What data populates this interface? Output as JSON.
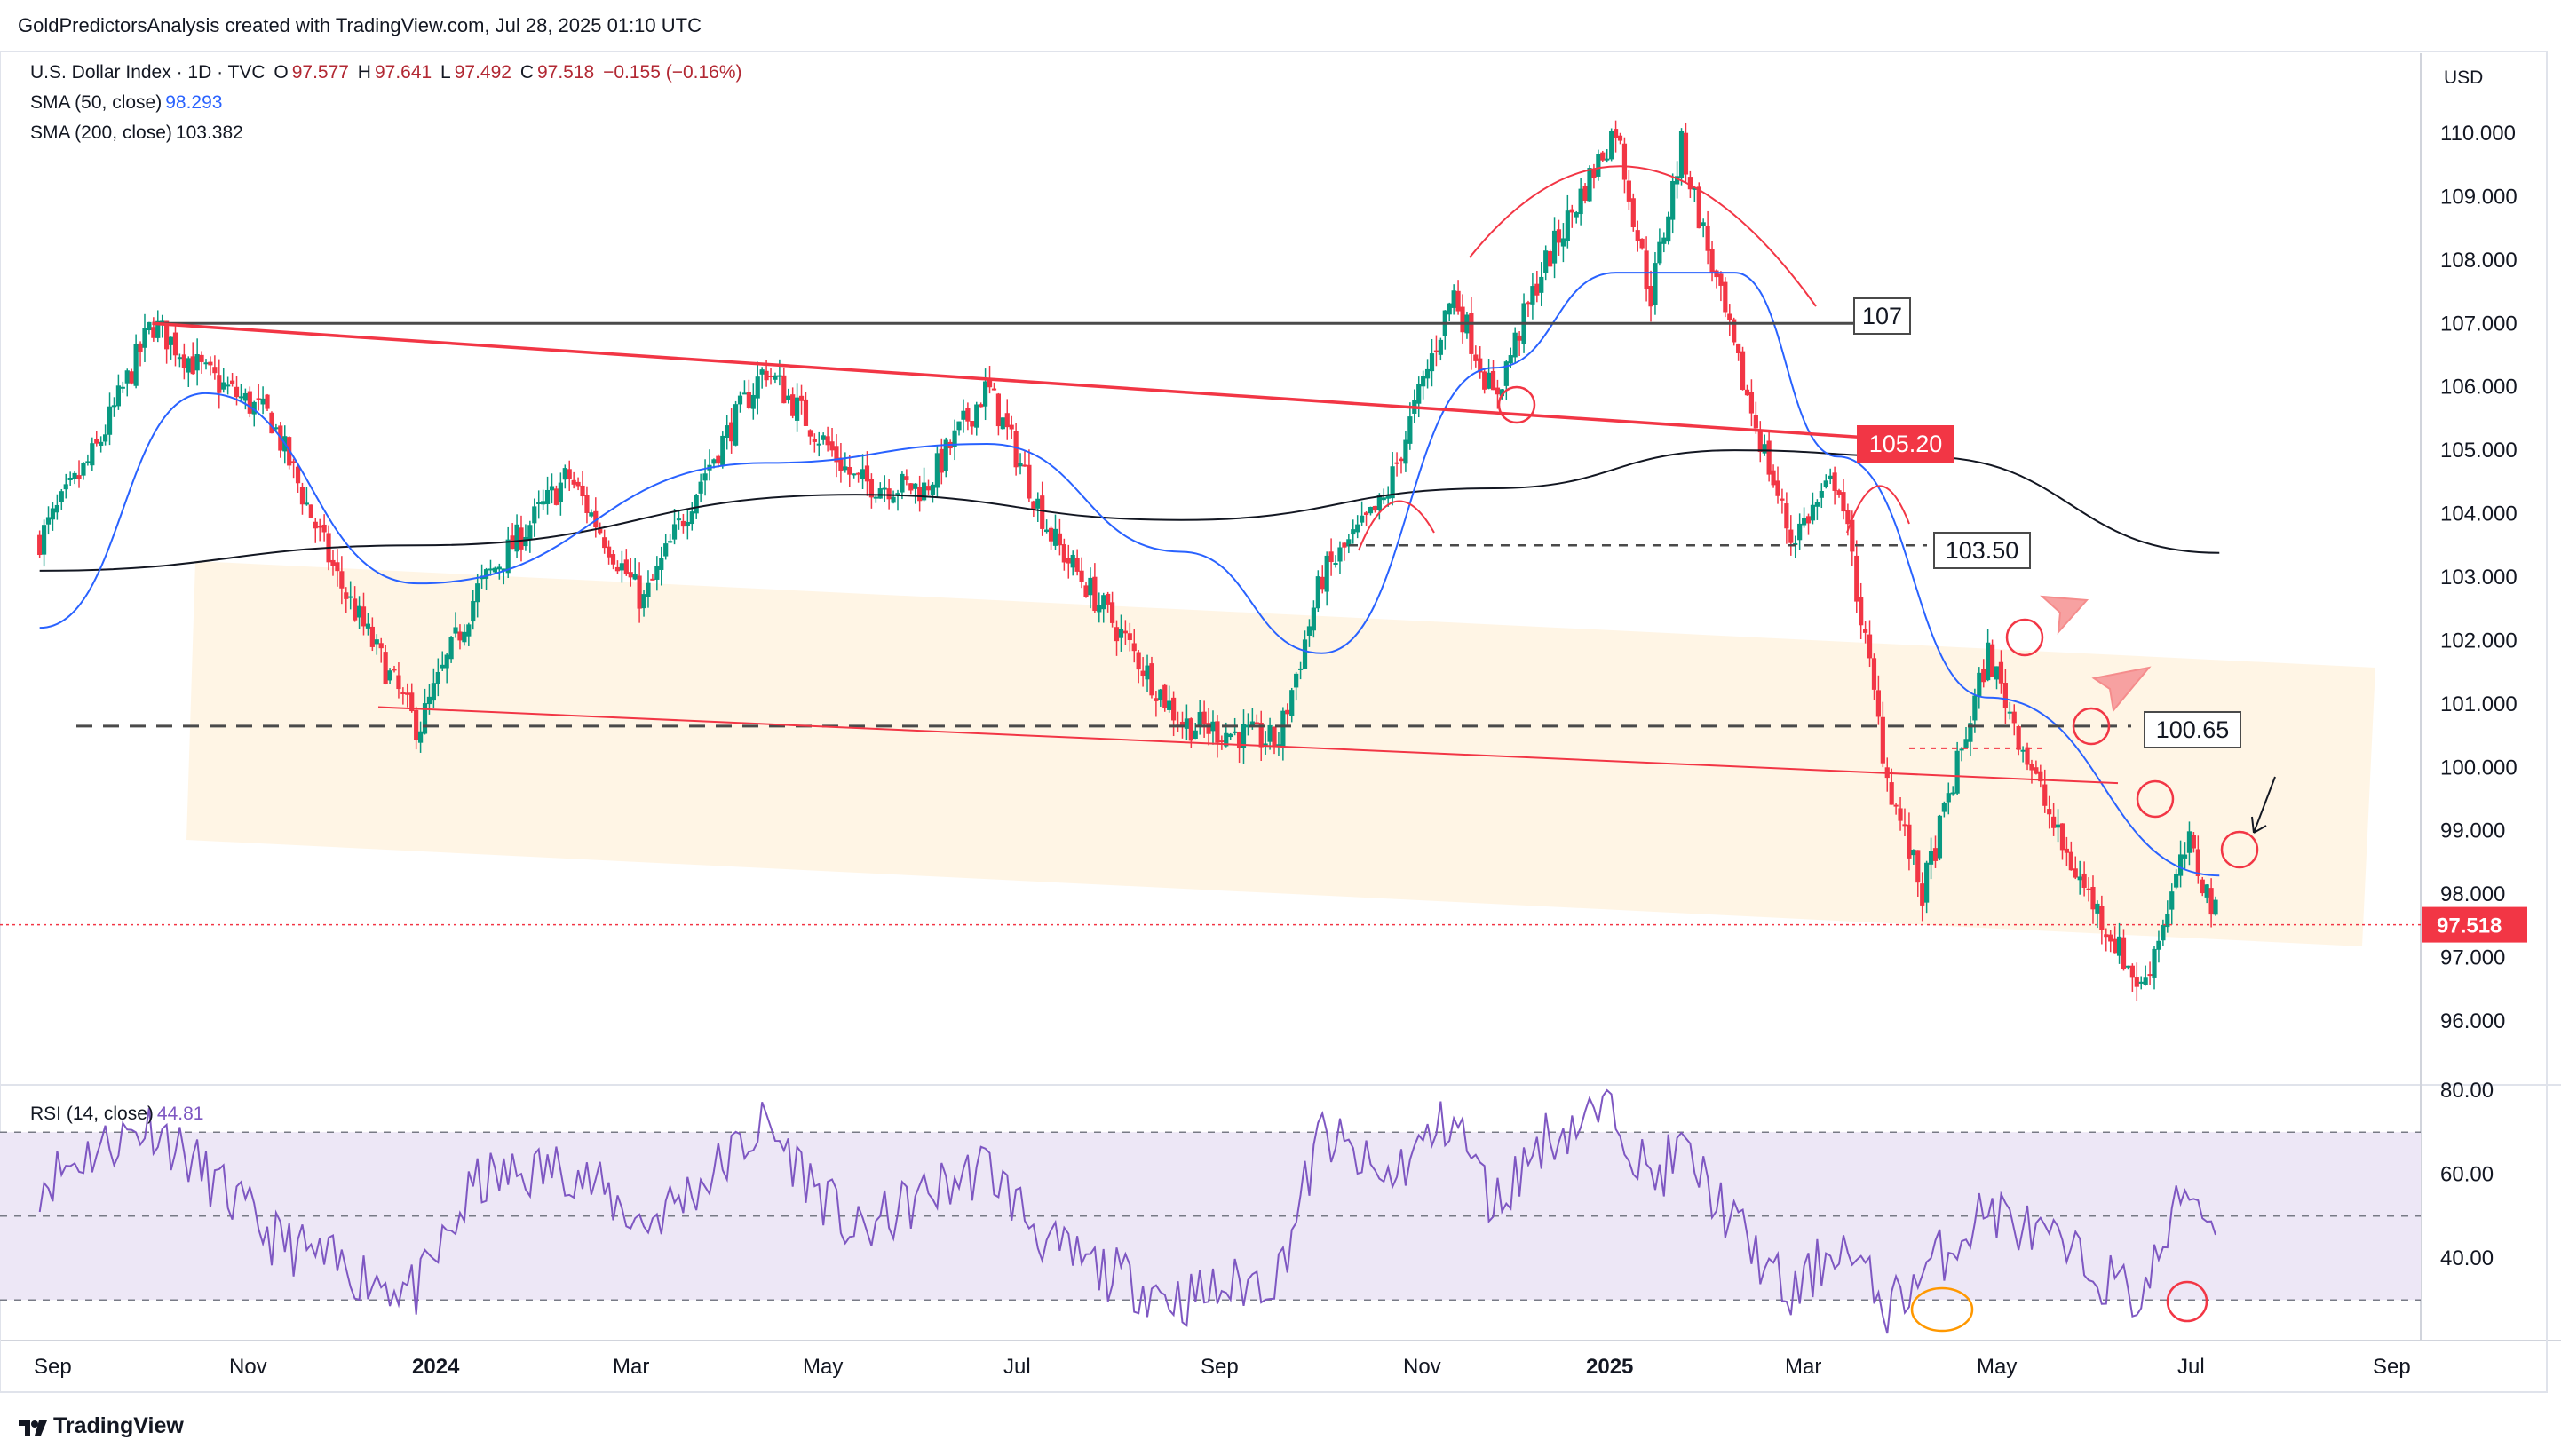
{
  "header": {
    "attribution": "GoldPredictorsAnalysis created with TradingView.com, Jul 28, 2025 01:10 UTC"
  },
  "legend": {
    "symbol": "U.S. Dollar Index · 1D · TVC",
    "o_label": "O",
    "o_value": "97.577",
    "h_label": "H",
    "h_value": "97.641",
    "l_label": "L",
    "l_value": "97.492",
    "c_label": "C",
    "c_value": "97.518",
    "change": "−0.155 (−0.16%)",
    "sma50_label": "SMA (50, close)",
    "sma50_value": "98.293",
    "sma200_label": "SMA (200, close)",
    "sma200_value": "103.382",
    "rsi_label": "RSI (14, close)",
    "rsi_value": "44.81"
  },
  "price_axis": {
    "currency": "USD",
    "ticks": [
      "110.000",
      "109.000",
      "108.000",
      "107.000",
      "106.000",
      "105.000",
      "104.000",
      "103.000",
      "102.000",
      "101.000",
      "100.000",
      "99.000",
      "98.000",
      "97.000",
      "96.000"
    ],
    "last_price": "97.518"
  },
  "rsi_axis": {
    "ticks": [
      "80.00",
      "60.00",
      "40.00"
    ]
  },
  "time_axis": {
    "labels": [
      {
        "text": "Sep",
        "bold": false
      },
      {
        "text": "Nov",
        "bold": false
      },
      {
        "text": "2024",
        "bold": true
      },
      {
        "text": "Mar",
        "bold": false
      },
      {
        "text": "May",
        "bold": false
      },
      {
        "text": "Jul",
        "bold": false
      },
      {
        "text": "Sep",
        "bold": false
      },
      {
        "text": "Nov",
        "bold": false
      },
      {
        "text": "2025",
        "bold": true
      },
      {
        "text": "Mar",
        "bold": false
      },
      {
        "text": "May",
        "bold": false
      },
      {
        "text": "Jul",
        "bold": false
      },
      {
        "text": "Sep",
        "bold": false
      }
    ]
  },
  "annotations": {
    "level_107": "107",
    "level_105_20": "105.20",
    "level_103_50": "103.50",
    "level_100_65": "100.65"
  },
  "footer": {
    "brand": "TradingView"
  },
  "colors": {
    "up": "#089981",
    "down": "#f23645",
    "sma50": "#2962ff",
    "sma200": "#131722",
    "rsi": "#7e57c2",
    "channel": "#fff3e0",
    "rsi_band": "#ede7f6",
    "resistance": "#f23645"
  },
  "chart_data": [
    {
      "type": "candlestick",
      "title": "U.S. Dollar Index · 1D · TVC",
      "ylabel": "USD",
      "ylim": [
        95.2,
        110.9
      ],
      "x_ticks": [
        "Sep",
        "Nov",
        "2024",
        "Mar",
        "May",
        "Jul",
        "Sep",
        "Nov",
        "2025",
        "Mar",
        "May",
        "Jul",
        "Sep"
      ],
      "series": [
        {
          "name": "U.S. Dollar Index",
          "x": [
            "2023-08-28",
            "2023-09-15",
            "2023-10-03",
            "2023-10-20",
            "2023-11-10",
            "2023-12-01",
            "2023-12-27",
            "2024-01-15",
            "2024-02-13",
            "2024-03-08",
            "2024-03-27",
            "2024-04-16",
            "2024-05-15",
            "2024-06-06",
            "2024-06-26",
            "2024-07-17",
            "2024-08-05",
            "2024-08-27",
            "2024-09-27",
            "2024-10-11",
            "2024-10-31",
            "2024-11-22",
            "2024-12-05",
            "2024-12-20",
            "2025-01-13",
            "2025-01-24",
            "2025-02-03",
            "2025-02-20",
            "2025-03-10",
            "2025-03-25",
            "2025-04-10",
            "2025-04-21",
            "2025-05-12",
            "2025-06-04",
            "2025-06-30",
            "2025-07-15",
            "2025-07-25"
          ],
          "values": [
            103.6,
            105.0,
            107.0,
            106.2,
            105.5,
            103.0,
            100.6,
            102.8,
            104.6,
            102.6,
            104.6,
            106.3,
            104.5,
            104.4,
            106.0,
            103.6,
            102.3,
            100.7,
            100.4,
            103.0,
            104.2,
            107.5,
            105.8,
            107.8,
            110.1,
            107.4,
            109.8,
            106.5,
            103.6,
            104.6,
            99.8,
            98.0,
            101.8,
            98.8,
            96.5,
            98.8,
            97.518
          ]
        },
        {
          "name": "SMA (50, close)",
          "x": [
            "2023-08-28",
            "2023-10-20",
            "2023-12-27",
            "2024-04-16",
            "2024-06-26",
            "2024-08-27",
            "2024-10-11",
            "2024-12-05",
            "2025-01-13",
            "2025-02-20",
            "2025-03-25",
            "2025-05-12",
            "2025-07-25"
          ],
          "values": [
            102.2,
            105.9,
            102.9,
            104.8,
            105.1,
            103.4,
            101.8,
            106.3,
            107.8,
            107.8,
            104.9,
            101.1,
            98.293
          ]
        },
        {
          "name": "SMA (200, close)",
          "x": [
            "2023-08-28",
            "2023-12-27",
            "2024-05-15",
            "2024-08-27",
            "2024-12-05",
            "2025-02-20",
            "2025-04-21",
            "2025-07-25"
          ],
          "values": [
            103.1,
            103.5,
            104.3,
            103.9,
            104.4,
            105.0,
            104.9,
            103.382
          ]
        }
      ],
      "levels": [
        107,
        105.2,
        103.5,
        100.65,
        97.518
      ]
    },
    {
      "type": "line",
      "title": "RSI (14, close)",
      "ylim": [
        22,
        82
      ],
      "bands": [
        30,
        50,
        70
      ],
      "series": [
        {
          "name": "RSI (14, close)",
          "x": [
            "2023-08-28",
            "2023-09-15",
            "2023-10-03",
            "2023-10-20",
            "2023-11-10",
            "2023-12-01",
            "2023-12-27",
            "2024-01-15",
            "2024-02-13",
            "2024-03-08",
            "2024-03-27",
            "2024-04-16",
            "2024-05-15",
            "2024-06-06",
            "2024-06-26",
            "2024-07-17",
            "2024-08-05",
            "2024-08-27",
            "2024-09-27",
            "2024-10-11",
            "2024-10-31",
            "2024-11-22",
            "2024-12-05",
            "2024-12-20",
            "2025-01-13",
            "2025-01-24",
            "2025-02-03",
            "2025-02-20",
            "2025-03-10",
            "2025-03-25",
            "2025-04-10",
            "2025-04-21",
            "2025-05-12",
            "2025-06-04",
            "2025-06-30",
            "2025-07-15",
            "2025-07-25"
          ],
          "values": [
            58,
            66,
            72,
            60,
            45,
            38,
            32,
            58,
            62,
            48,
            58,
            72,
            45,
            55,
            62,
            42,
            36,
            30,
            36,
            70,
            58,
            74,
            52,
            68,
            76,
            58,
            66,
            48,
            30,
            44,
            28,
            36,
            52,
            42,
            30,
            58,
            44.81
          ]
        }
      ]
    }
  ]
}
